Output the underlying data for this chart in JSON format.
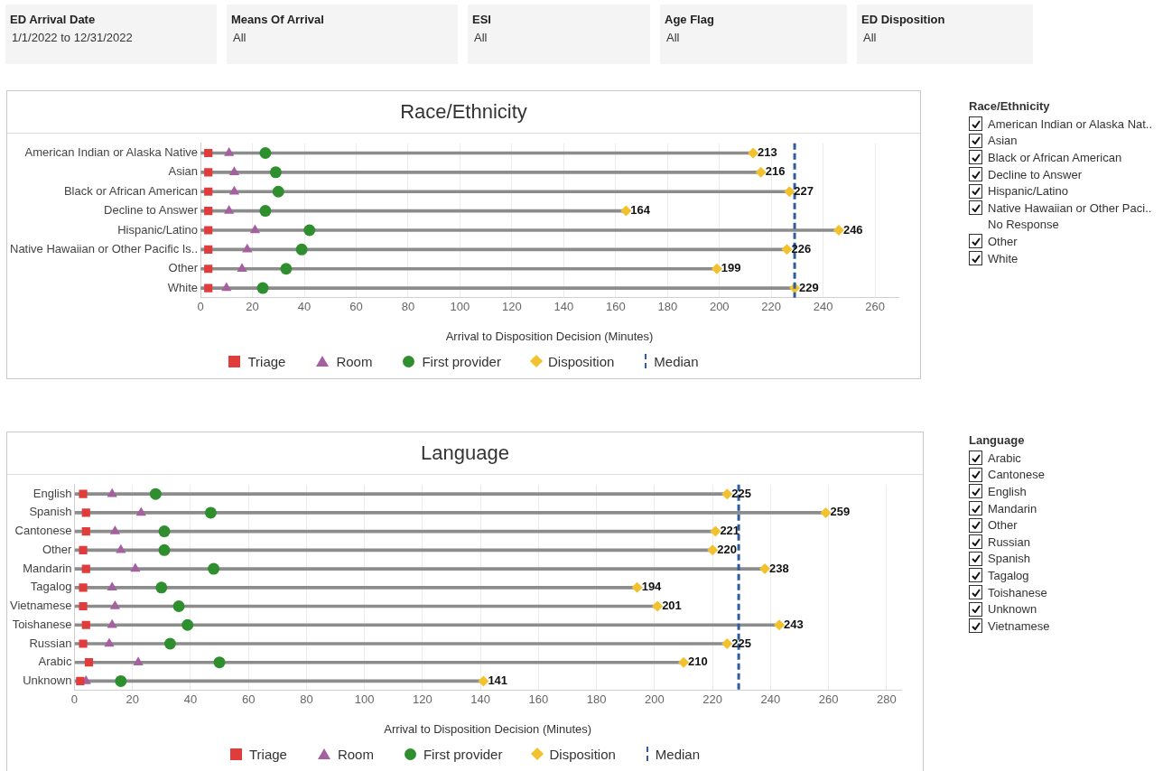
{
  "chart_data": [
    {
      "type": "other",
      "annotations": [
        "ED Arrival Date",
        "1/1/2022 to 12/31/2022",
        "Means Of Arrival",
        "All",
        "ESI",
        "All",
        "Age Flag",
        "All",
        "ED Disposition",
        "All"
      ]
    },
    {
      "type": "scatter",
      "title": "Race/Ethnicity",
      "orientation": "horizontal",
      "xlabel": "Arrival to Disposition Decision (Minutes)",
      "categories": [
        "American Indian or Alaska Native",
        "Asian",
        "Black or African American",
        "Decline to Answer",
        "Hispanic/Latino",
        "Native Hawaiian or Other Pacific Is..",
        "Other",
        "White"
      ],
      "xlim": [
        0,
        269
      ],
      "xticks": [
        0,
        20,
        40,
        60,
        80,
        100,
        120,
        140,
        160,
        180,
        200,
        220,
        240,
        260
      ],
      "grid": "x",
      "legend": "bottom",
      "series": [
        {
          "type": "bar",
          "color": "#8c8c8c",
          "values": [
            213,
            216,
            227,
            164,
            246,
            226,
            199,
            229
          ]
        },
        {
          "name": "Triage",
          "marker": "square",
          "color": "#e03c3c",
          "values": [
            3,
            3,
            3,
            3,
            3,
            3,
            3,
            3
          ]
        },
        {
          "name": "Room",
          "marker": "triangle",
          "color": "#a5609f",
          "values": [
            11,
            13,
            13,
            11,
            21,
            18,
            16,
            10
          ]
        },
        {
          "name": "First provider",
          "marker": "circle",
          "color": "#2f8f2f",
          "values": [
            25,
            29,
            30,
            25,
            42,
            39,
            33,
            24
          ]
        },
        {
          "name": "Disposition",
          "marker": "diamond",
          "color": "#f2c12e",
          "values": [
            213,
            216,
            227,
            164,
            246,
            226,
            199,
            229
          ],
          "value_labels": [
            "213",
            "216",
            "227",
            "164",
            "246",
            "226",
            "199",
            "229"
          ]
        }
      ],
      "ref_lines": [
        {
          "axis": "x",
          "value": 229,
          "label": "Median",
          "color": "#2e5c9e",
          "line_style": "dashed"
        }
      ]
    },
    {
      "type": "other",
      "title": "Race/Ethnicity",
      "categories": [
        "American Indian or Alaska Nat..",
        "Asian",
        "Black or African American",
        "Decline to Answer",
        "Hispanic/Latino",
        "Native Hawaiian or Other Paci..",
        "No Response",
        "Other",
        "White"
      ],
      "colors": [
        "#111111",
        "#111111",
        "#111111",
        "#111111",
        "#111111",
        "#111111",
        null,
        "#111111",
        "#111111"
      ]
    },
    {
      "type": "scatter",
      "title": "Language",
      "orientation": "horizontal",
      "xlabel": "Arrival to Disposition Decision (Minutes)",
      "categories": [
        "English",
        "Spanish",
        "Cantonese",
        "Other",
        "Mandarin",
        "Tagalog",
        "Vietnamese",
        "Toishanese",
        "Russian",
        "Arabic",
        "Unknown"
      ],
      "xlim": [
        0,
        285
      ],
      "xticks": [
        0,
        20,
        40,
        60,
        80,
        100,
        120,
        140,
        160,
        180,
        200,
        220,
        240,
        260,
        280
      ],
      "grid": "x",
      "legend": "bottom",
      "series": [
        {
          "type": "bar",
          "color": "#8c8c8c",
          "values": [
            225,
            259,
            221,
            220,
            238,
            194,
            201,
            243,
            225,
            210,
            141
          ]
        },
        {
          "name": "Triage",
          "marker": "square",
          "color": "#e03c3c",
          "values": [
            3,
            4,
            4,
            3,
            4,
            3,
            3,
            4,
            3,
            5,
            2
          ]
        },
        {
          "name": "Room",
          "marker": "triangle",
          "color": "#a5609f",
          "values": [
            13,
            23,
            14,
            16,
            21,
            13,
            14,
            13,
            12,
            22,
            4
          ]
        },
        {
          "name": "First provider",
          "marker": "circle",
          "color": "#2f8f2f",
          "values": [
            28,
            47,
            31,
            31,
            48,
            30,
            36,
            39,
            33,
            50,
            16
          ]
        },
        {
          "name": "Disposition",
          "marker": "diamond",
          "color": "#f2c12e",
          "values": [
            225,
            259,
            221,
            220,
            238,
            194,
            201,
            243,
            225,
            210,
            141
          ],
          "value_labels": [
            "225",
            "259",
            "221",
            "220",
            "238",
            "194",
            "201",
            "243",
            "225",
            "210",
            "141"
          ]
        }
      ],
      "ref_lines": [
        {
          "axis": "x",
          "value": 229,
          "label": "Median",
          "color": "#2e5c9e",
          "line_style": "dashed"
        }
      ]
    },
    {
      "type": "other",
      "title": "Language",
      "categories": [
        "Arabic",
        "Cantonese",
        "English",
        "Mandarin",
        "Other",
        "Russian",
        "Spanish",
        "Tagalog",
        "Toishanese",
        "Unknown",
        "Vietnamese"
      ],
      "colors": [
        "#111111",
        "#111111",
        "#111111",
        "#111111",
        "#111111",
        "#111111",
        "#111111",
        "#111111",
        "#111111",
        "#111111",
        "#111111"
      ]
    }
  ]
}
